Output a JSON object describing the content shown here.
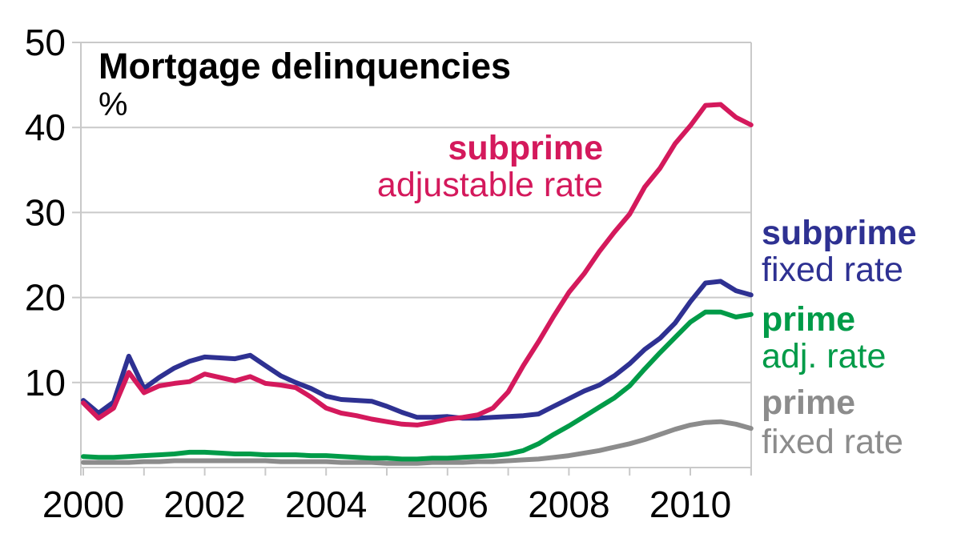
{
  "chart_data": {
    "type": "line",
    "title": "Mortgage delinquencies",
    "ylabel": "%",
    "xlabel": "",
    "x_start": 2000,
    "x_step": 0.25,
    "x_end": 2011,
    "xlim": [
      2000,
      2011
    ],
    "ylim": [
      0,
      50
    ],
    "y_ticks": [
      10,
      20,
      30,
      40,
      50
    ],
    "x_tick_years": [
      2000,
      2001,
      2002,
      2003,
      2004,
      2005,
      2006,
      2007,
      2008,
      2009,
      2010,
      2011
    ],
    "x_label_years": [
      2000,
      2002,
      2004,
      2006,
      2008,
      2010
    ],
    "grid": "horizontal",
    "legend_position": "labels-on-chart-and-right-margin",
    "series": [
      {
        "id": "subprime-adjustable-rate",
        "label_line1": "subprime",
        "label_line2": "adjustable rate",
        "color": "#D4195C",
        "values": [
          7.6,
          5.8,
          7.0,
          11.2,
          8.8,
          9.6,
          9.9,
          10.1,
          11.0,
          10.6,
          10.2,
          10.7,
          9.9,
          9.7,
          9.4,
          8.3,
          7.0,
          6.4,
          6.1,
          5.7,
          5.4,
          5.1,
          5.0,
          5.3,
          5.7,
          5.9,
          6.2,
          7.0,
          8.9,
          12.0,
          14.8,
          17.8,
          20.6,
          22.8,
          25.4,
          27.7,
          29.8,
          33.0,
          35.2,
          38.1,
          40.2,
          42.6,
          42.7,
          41.2,
          40.3
        ]
      },
      {
        "id": "subprime-fixed-rate",
        "label_line1": "subprime",
        "label_line2": "fixed rate",
        "color": "#2E3192",
        "values": [
          7.9,
          6.4,
          7.7,
          13.1,
          9.3,
          10.6,
          11.7,
          12.5,
          13.0,
          12.9,
          12.8,
          13.2,
          12.0,
          10.8,
          10.0,
          9.3,
          8.4,
          8.0,
          7.9,
          7.8,
          7.2,
          6.5,
          5.9,
          5.9,
          6.0,
          5.8,
          5.8,
          5.9,
          6.0,
          6.1,
          6.3,
          7.2,
          8.1,
          9.0,
          9.7,
          10.8,
          12.2,
          13.9,
          15.2,
          17.0,
          19.5,
          21.7,
          21.9,
          20.8,
          20.3
        ]
      },
      {
        "id": "prime-adjustable-rate",
        "label_line1": "prime",
        "label_line2": "adj. rate",
        "color": "#009B48",
        "values": [
          1.3,
          1.2,
          1.2,
          1.3,
          1.4,
          1.5,
          1.6,
          1.8,
          1.8,
          1.7,
          1.6,
          1.6,
          1.5,
          1.5,
          1.5,
          1.4,
          1.4,
          1.3,
          1.2,
          1.1,
          1.1,
          1.0,
          1.0,
          1.1,
          1.1,
          1.2,
          1.3,
          1.4,
          1.6,
          2.0,
          2.8,
          3.9,
          4.9,
          6.0,
          7.1,
          8.2,
          9.6,
          11.6,
          13.5,
          15.3,
          17.1,
          18.3,
          18.3,
          17.7,
          18.0
        ]
      },
      {
        "id": "prime-fixed-rate",
        "label_line1": "prime",
        "label_line2": "fixed rate",
        "color": "#8C8C8C",
        "values": [
          0.6,
          0.6,
          0.6,
          0.6,
          0.7,
          0.7,
          0.8,
          0.8,
          0.8,
          0.8,
          0.8,
          0.8,
          0.8,
          0.7,
          0.7,
          0.7,
          0.7,
          0.6,
          0.6,
          0.6,
          0.5,
          0.5,
          0.5,
          0.6,
          0.6,
          0.6,
          0.7,
          0.7,
          0.8,
          0.9,
          1.0,
          1.2,
          1.4,
          1.7,
          2.0,
          2.4,
          2.8,
          3.3,
          3.9,
          4.5,
          5.0,
          5.3,
          5.4,
          5.1,
          4.6
        ]
      }
    ]
  },
  "colors": {
    "grid": "#C9C9C9",
    "axis": "#C9C9C9",
    "text": "#000000",
    "background": "#FFFFFF"
  }
}
